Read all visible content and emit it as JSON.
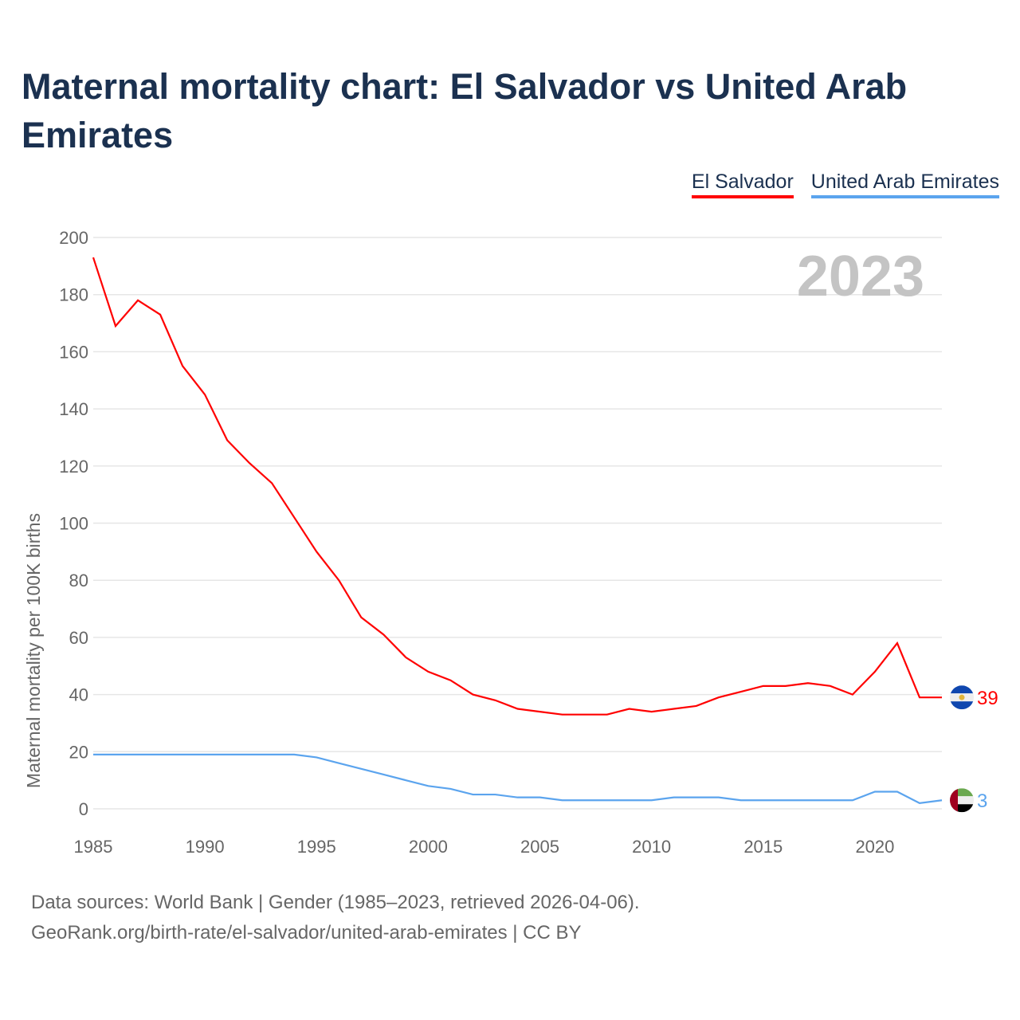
{
  "title": "Maternal mortality chart: El Salvador vs United Arab Emirates",
  "footer": {
    "line1": "Data sources: World Bank | Gender (1985–2023, retrieved 2026-04-06).",
    "line2": "GeoRank.org/birth-rate/el-salvador/united-arab-emirates | CC BY"
  },
  "chart_data": {
    "type": "line",
    "title": "Maternal mortality chart: El Salvador vs United Arab Emirates",
    "ylabel": "Maternal mortality per 100K births",
    "xlabel": "",
    "year_label": "2023",
    "ylim": [
      0,
      200
    ],
    "xlim": [
      1985,
      2023
    ],
    "yticks": [
      0,
      20,
      40,
      60,
      80,
      100,
      120,
      140,
      160,
      180,
      200
    ],
    "xticks": [
      1985,
      1990,
      1995,
      2000,
      2005,
      2010,
      2015,
      2020
    ],
    "legend_position": "top-right",
    "grid": true,
    "x": [
      1985,
      1986,
      1987,
      1988,
      1989,
      1990,
      1991,
      1992,
      1993,
      1994,
      1995,
      1996,
      1997,
      1998,
      1999,
      2000,
      2001,
      2002,
      2003,
      2004,
      2005,
      2006,
      2007,
      2008,
      2009,
      2010,
      2011,
      2012,
      2013,
      2014,
      2015,
      2016,
      2017,
      2018,
      2019,
      2020,
      2021,
      2022,
      2023
    ],
    "series": [
      {
        "name": "El Salvador",
        "color": "#ff0000",
        "end_label": "39",
        "flag": "el-salvador-flag",
        "values": [
          193,
          169,
          178,
          173,
          155,
          145,
          129,
          121,
          114,
          102,
          90,
          80,
          67,
          61,
          53,
          48,
          45,
          40,
          38,
          35,
          34,
          33,
          33,
          33,
          35,
          34,
          35,
          36,
          39,
          41,
          43,
          43,
          44,
          43,
          40,
          48,
          58,
          39,
          39
        ]
      },
      {
        "name": "United Arab Emirates",
        "color": "#5ba4ee",
        "end_label": "3",
        "flag": "uae-flag",
        "values": [
          19,
          19,
          19,
          19,
          19,
          19,
          19,
          19,
          19,
          19,
          18,
          16,
          14,
          12,
          10,
          8,
          7,
          5,
          5,
          4,
          4,
          3,
          3,
          3,
          3,
          3,
          4,
          4,
          4,
          3,
          3,
          3,
          3,
          3,
          3,
          6,
          6,
          2,
          3
        ]
      }
    ]
  }
}
